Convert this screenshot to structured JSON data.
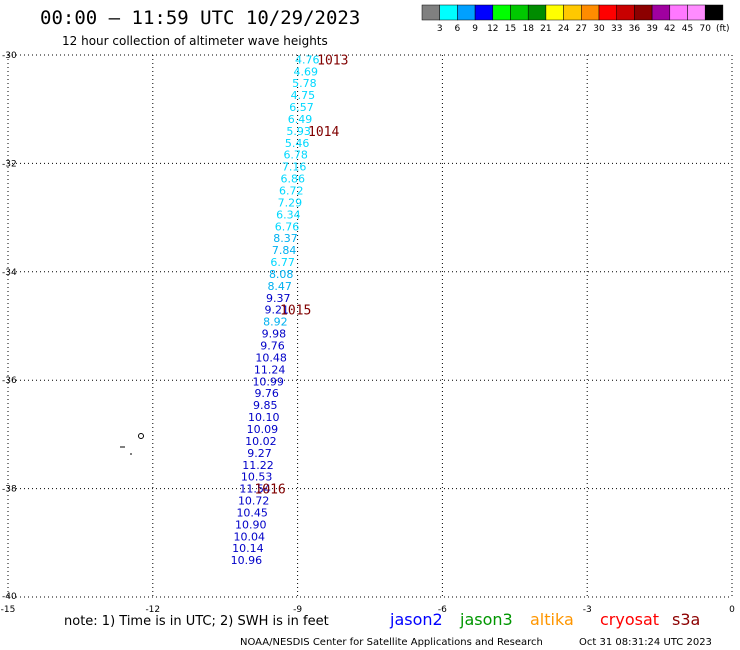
{
  "header": {
    "title": "00:00 – 11:59 UTC 10/29/2023",
    "subtitle": "12 hour collection of altimeter wave heights"
  },
  "color_legend": {
    "labels": [
      "3",
      "6",
      "9",
      "12",
      "15",
      "18",
      "21",
      "24",
      "27",
      "30",
      "33",
      "36",
      "39",
      "42",
      "45",
      "70"
    ],
    "unit": "(ft)",
    "colors": [
      "#808080",
      "#00ffff",
      "#00a0ff",
      "#0000ff",
      "#00ff00",
      "#00c800",
      "#008c00",
      "#ffff00",
      "#ffc800",
      "#ff8c00",
      "#ff0000",
      "#c80000",
      "#8c0000",
      "#a000a0",
      "#ff78ff",
      "#ff8cff",
      "#000000"
    ]
  },
  "chart_data": {
    "type": "scatter",
    "title": "00:00 – 11:59 UTC 10/29/2023",
    "subtitle": "12 hour collection of altimeter wave heights",
    "xlim": [
      -15,
      0
    ],
    "ylim": [
      -40,
      -30
    ],
    "x_ticks": [
      "-15",
      "-12",
      "-9",
      "-6",
      "-3",
      "0"
    ],
    "y_ticks": [
      "-30",
      "-32",
      "-34",
      "-36",
      "-38",
      "-40"
    ],
    "grid": true,
    "points": [
      {
        "lon": -8.8,
        "lat": -30.08,
        "label": "4.76",
        "color": "#00d8ff"
      },
      {
        "lon": -8.83,
        "lat": -30.3,
        "label": "4.69",
        "color": "#00d8ff"
      },
      {
        "lon": -8.86,
        "lat": -30.52,
        "label": "5.78",
        "color": "#00d8ff"
      },
      {
        "lon": -8.89,
        "lat": -30.74,
        "label": "4.75",
        "color": "#00d8ff"
      },
      {
        "lon": -8.92,
        "lat": -30.96,
        "label": "6.57",
        "color": "#00d8ff"
      },
      {
        "lon": -8.95,
        "lat": -31.18,
        "label": "6.49",
        "color": "#00d8ff"
      },
      {
        "lon": -8.98,
        "lat": -31.4,
        "label": "5.93",
        "color": "#00d8ff"
      },
      {
        "lon": -9.01,
        "lat": -31.62,
        "label": "5.46",
        "color": "#00d8ff"
      },
      {
        "lon": -9.04,
        "lat": -31.84,
        "label": "6.78",
        "color": "#00d8ff"
      },
      {
        "lon": -9.07,
        "lat": -32.06,
        "label": "7.16",
        "color": "#00d8ff"
      },
      {
        "lon": -9.1,
        "lat": -32.28,
        "label": "6.86",
        "color": "#00d8ff"
      },
      {
        "lon": -9.13,
        "lat": -32.5,
        "label": "6.72",
        "color": "#00d8ff"
      },
      {
        "lon": -9.16,
        "lat": -32.72,
        "label": "7.29",
        "color": "#00d8ff"
      },
      {
        "lon": -9.19,
        "lat": -32.94,
        "label": "6.34",
        "color": "#00d8ff"
      },
      {
        "lon": -9.22,
        "lat": -33.16,
        "label": "6.76",
        "color": "#00d8ff"
      },
      {
        "lon": -9.25,
        "lat": -33.38,
        "label": "8.37",
        "color": "#00b0f0"
      },
      {
        "lon": -9.28,
        "lat": -33.6,
        "label": "7.84",
        "color": "#00b0f0"
      },
      {
        "lon": -9.31,
        "lat": -33.82,
        "label": "6.77",
        "color": "#00d8ff"
      },
      {
        "lon": -9.34,
        "lat": -34.04,
        "label": "8.08",
        "color": "#00b0f0"
      },
      {
        "lon": -9.37,
        "lat": -34.26,
        "label": "8.47",
        "color": "#00b0f0"
      },
      {
        "lon": -9.4,
        "lat": -34.48,
        "label": "9.37",
        "color": "#0000c8"
      },
      {
        "lon": -9.43,
        "lat": -34.7,
        "label": "9.21",
        "color": "#0000c8"
      },
      {
        "lon": -9.46,
        "lat": -34.92,
        "label": "8.92",
        "color": "#00b0f0"
      },
      {
        "lon": -9.49,
        "lat": -35.14,
        "label": "9.98",
        "color": "#0000c8"
      },
      {
        "lon": -9.52,
        "lat": -35.36,
        "label": "9.76",
        "color": "#0000c8"
      },
      {
        "lon": -9.55,
        "lat": -35.58,
        "label": "10.48",
        "color": "#0000c8"
      },
      {
        "lon": -9.58,
        "lat": -35.8,
        "label": "11.24",
        "color": "#0000c8"
      },
      {
        "lon": -9.61,
        "lat": -36.02,
        "label": "10.99",
        "color": "#0000c8"
      },
      {
        "lon": -9.64,
        "lat": -36.24,
        "label": "9.76",
        "color": "#0000c8"
      },
      {
        "lon": -9.67,
        "lat": -36.46,
        "label": "9.85",
        "color": "#0000c8"
      },
      {
        "lon": -9.7,
        "lat": -36.68,
        "label": "10.10",
        "color": "#0000c8"
      },
      {
        "lon": -9.73,
        "lat": -36.9,
        "label": "10.09",
        "color": "#0000c8"
      },
      {
        "lon": -9.76,
        "lat": -37.12,
        "label": "10.02",
        "color": "#0000c8"
      },
      {
        "lon": -9.79,
        "lat": -37.34,
        "label": "9.27",
        "color": "#0000c8"
      },
      {
        "lon": -9.82,
        "lat": -37.56,
        "label": "11.22",
        "color": "#0000c8"
      },
      {
        "lon": -9.85,
        "lat": -37.78,
        "label": "10.53",
        "color": "#0000c8"
      },
      {
        "lon": -9.88,
        "lat": -38.0,
        "label": "11.54",
        "color": "#0000c8"
      },
      {
        "lon": -9.91,
        "lat": -38.22,
        "label": "10.72",
        "color": "#0000c8"
      },
      {
        "lon": -9.94,
        "lat": -38.44,
        "label": "10.45",
        "color": "#0000c8"
      },
      {
        "lon": -9.97,
        "lat": -38.66,
        "label": "10.90",
        "color": "#0000c8"
      },
      {
        "lon": -10.0,
        "lat": -38.88,
        "label": "10.04",
        "color": "#0000c8"
      },
      {
        "lon": -10.03,
        "lat": -39.1,
        "label": "10.14",
        "color": "#0000c8"
      },
      {
        "lon": -10.06,
        "lat": -39.32,
        "label": "10.96",
        "color": "#0000c8"
      }
    ],
    "times": [
      {
        "lon": -8.27,
        "lat": -30.08,
        "label": "1013"
      },
      {
        "lon": -8.46,
        "lat": -31.4,
        "label": "1014"
      },
      {
        "lon": -9.04,
        "lat": -34.7,
        "label": "1015"
      },
      {
        "lon": -9.57,
        "lat": -38.0,
        "label": "1016"
      }
    ]
  },
  "note": "note: 1) Time is in UTC; 2) SWH is in feet",
  "satellites": [
    {
      "name": "jason2",
      "color": "#0000ff"
    },
    {
      "name": "jason3",
      "color": "#009600"
    },
    {
      "name": "altika",
      "color": "#ff9600"
    },
    {
      "name": "cryosat",
      "color": "#ff0000"
    },
    {
      "name": "s3a",
      "color": "#8c0000"
    }
  ],
  "footer": {
    "center": "NOAA/NESDIS Center for Satellite Applications and Research",
    "timestamp": "Oct 31 08:31:24 UTC 2023"
  }
}
